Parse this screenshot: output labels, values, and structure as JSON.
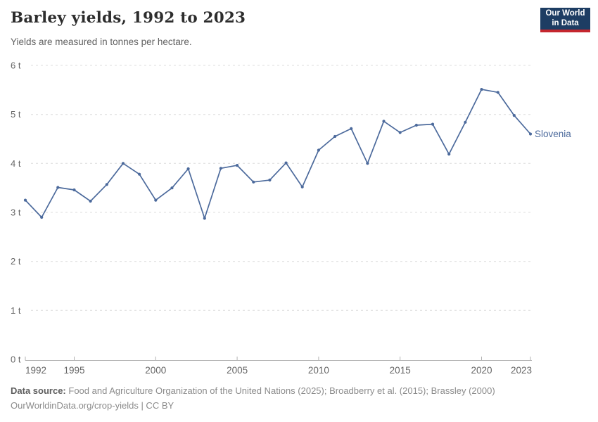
{
  "header": {
    "title": "Barley yields, 1992 to 2023",
    "subtitle": "Yields are measured in tonnes per hectare."
  },
  "logo": {
    "line1": "Our World",
    "line2": "in Data"
  },
  "footer": {
    "datasource_label": "Data source:",
    "datasource_text": "Food and Agriculture Organization of the United Nations (2025); Broadberry et al. (2015); Brassley (2000)",
    "link_line": "OurWorldinData.org/crop-yields | CC BY"
  },
  "colors": {
    "accent": "#4C6A9C",
    "grid": "#dcdcdc",
    "axis": "#b3b3b3",
    "tick_text": "#666666",
    "logo_bg": "#1D3D63",
    "logo_accent": "#C5262E"
  },
  "chart_data": {
    "type": "line",
    "title": "Barley yields, 1992 to 2023",
    "subtitle": "Yields are measured in tonnes per hectare.",
    "xlabel": "",
    "ylabel": "tonnes per hectare",
    "unit_suffix": " t",
    "xlim": [
      1992,
      2023
    ],
    "ylim": [
      0,
      6
    ],
    "x_ticks": [
      1992,
      1995,
      2000,
      2005,
      2010,
      2015,
      2020,
      2023
    ],
    "y_ticks": [
      0,
      1,
      2,
      3,
      4,
      5,
      6
    ],
    "grid": "horizontal-dashed",
    "legend": "end-of-line-label",
    "series": [
      {
        "name": "Slovenia",
        "color": "#4C6A9C",
        "x": [
          1992,
          1993,
          1994,
          1995,
          1996,
          1997,
          1998,
          1999,
          2000,
          2001,
          2002,
          2003,
          2004,
          2005,
          2006,
          2007,
          2008,
          2009,
          2010,
          2011,
          2012,
          2013,
          2014,
          2015,
          2016,
          2017,
          2018,
          2019,
          2020,
          2021,
          2022,
          2023
        ],
        "values": [
          3.25,
          2.9,
          3.51,
          3.46,
          3.23,
          3.57,
          4.0,
          3.78,
          3.25,
          3.5,
          3.89,
          2.88,
          3.9,
          3.96,
          3.62,
          3.66,
          4.01,
          3.52,
          4.27,
          4.55,
          4.71,
          4.0,
          4.86,
          4.63,
          4.78,
          4.8,
          4.19,
          4.84,
          5.51,
          5.45,
          4.98,
          4.6
        ]
      }
    ]
  }
}
